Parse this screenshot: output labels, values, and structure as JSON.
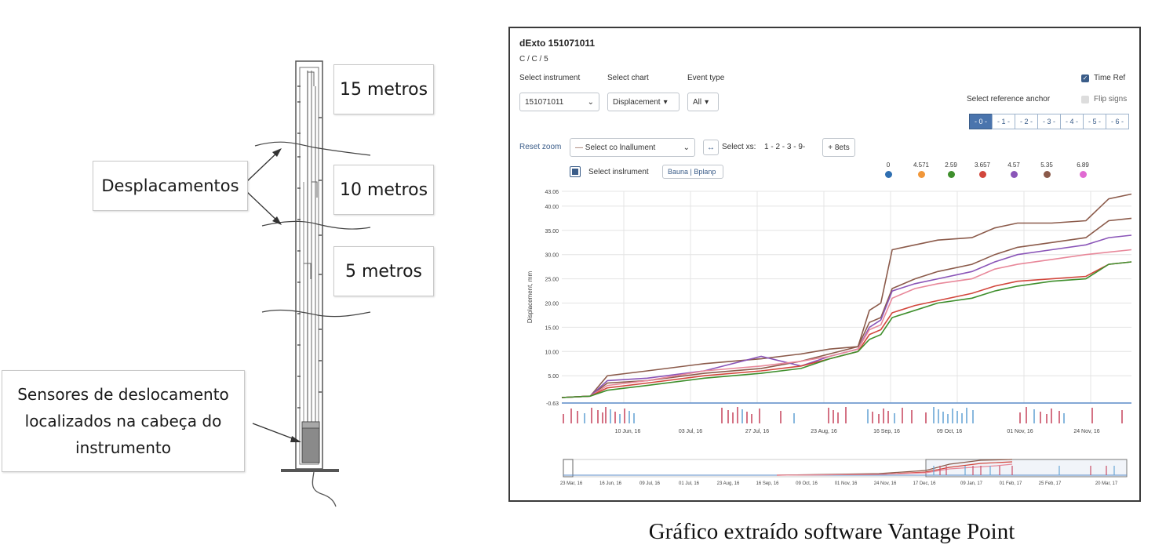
{
  "diagram": {
    "labels": {
      "m15": "15 metros",
      "m10": "10 metros",
      "m5": "5 metros",
      "displacements": "Desplacamentos",
      "sensors": "Sensores de deslocamento localizados na cabeça do instrumento"
    }
  },
  "app": {
    "title": "dExto 151071011",
    "subtitle": "C / C / 5",
    "select_instrument_label": "Select instrument",
    "instrument_value": "151071011",
    "select_chart_label": "Select chart",
    "chart_value": "Displacement",
    "event_type_label": "Event type",
    "event_value": "All",
    "time_ref_label": "Time Ref",
    "flip_signs_label": "Flip signs",
    "reference_anchor_label": "Select reference anchor",
    "anchor_buttons": [
      "- 0 -",
      "- 1 -",
      "- 2 -",
      "- 3 -",
      "- 4 -",
      "- 5 -",
      "- 6 -"
    ],
    "reset_zoom": "Reset zoom",
    "select_instrument_dropdown": "Select co lnallument",
    "select_xs_label": "Select xs:",
    "select_xs_values": "1 - 2 - 3 - 9-",
    "plus_button": "+ 8ets",
    "select_instrument_checkbox": "Select inslrument",
    "tag_button": "Bauna | Bplanp",
    "arrows_button": "↔"
  },
  "colors": {
    "brown": "#8b5a4a",
    "purple": "#8a55b8",
    "red": "#d2463c",
    "green": "#3f8f2d",
    "pink": "#e8889a",
    "orange": "#f1973a",
    "blue": "#2f6fb1",
    "magenta": "#e06ad2",
    "event_red": "#c94e66",
    "event_blue": "#6aa7d6"
  },
  "chart_data": {
    "type": "line",
    "ylabel": "Displacement, mm",
    "ylim": [
      -0.63,
      43.06
    ],
    "y_ticks": [
      "43.06",
      "40.00",
      "35.00",
      "30.00",
      "25.00",
      "20.00",
      "15.00",
      "10.00",
      "5.00",
      "-0.63"
    ],
    "x_ticks": [
      "10 Jun, 16",
      "03 Jul, 16",
      "27 Jul, 16",
      "23 Aug, 16",
      "16 Sep, 16",
      "09 Oct, 16",
      "01 Nov, 16",
      "24 Nov, 16"
    ],
    "navigator_ticks": [
      "23 Mar, 16",
      "16 Jun, 16",
      "09 Jul, 16",
      "01 Jul, 16",
      "23 Aug, 16",
      "16 Sep, 16",
      "09 Oct, 16",
      "01 Nov, 16",
      "24 Nov, 16",
      "17 Dec, 16",
      "09 Jan, 17",
      "01 Feb, 17",
      "25 Feb, 17",
      "20 Mar, 17"
    ],
    "legend": [
      {
        "name": "0",
        "color": "#2f6fb1"
      },
      {
        "name": "4.571",
        "color": "#f1973a"
      },
      {
        "name": "2.59",
        "color": "#3f8f2d"
      },
      {
        "name": "3.657",
        "color": "#d2463c"
      },
      {
        "name": "4.57",
        "color": "#8a55b8"
      },
      {
        "name": "5.35",
        "color": "#8b5a4a"
      },
      {
        "name": "6.89",
        "color": "#e06ad2"
      }
    ],
    "x": [
      0,
      5,
      8,
      15,
      25,
      35,
      42,
      47,
      52,
      54,
      56,
      58,
      62,
      66,
      72,
      76,
      80,
      86,
      92,
      96,
      100
    ],
    "series": [
      {
        "color": "#8b5a4a",
        "values": [
          0.5,
          0.8,
          5.0,
          6.0,
          7.5,
          8.5,
          9.5,
          10.5,
          11.0,
          18.5,
          20.0,
          31.0,
          32.0,
          33.0,
          33.5,
          35.5,
          36.5,
          36.5,
          37.0,
          41.5,
          42.5
        ]
      },
      {
        "color": "#8b5a4a",
        "values": [
          0.5,
          0.8,
          3.5,
          4.0,
          5.5,
          6.5,
          8.0,
          9.5,
          11.0,
          16.0,
          17.0,
          23.0,
          25.0,
          26.5,
          28.0,
          30.0,
          31.5,
          32.5,
          33.5,
          37.0,
          37.5
        ]
      },
      {
        "color": "#8a55b8",
        "values": [
          0.5,
          0.8,
          4.0,
          4.5,
          6.0,
          9.0,
          7.0,
          9.0,
          10.5,
          15.0,
          16.5,
          22.5,
          24.0,
          25.0,
          26.5,
          28.5,
          30.0,
          31.0,
          32.0,
          33.5,
          34.0
        ]
      },
      {
        "color": "#e8889a",
        "values": [
          0.5,
          0.8,
          3.0,
          4.0,
          6.0,
          7.0,
          8.0,
          9.0,
          10.5,
          14.5,
          15.5,
          21.0,
          23.0,
          24.0,
          25.0,
          27.0,
          28.0,
          29.0,
          30.0,
          30.5,
          31.0
        ]
      },
      {
        "color": "#d2463c",
        "values": [
          0.5,
          0.8,
          2.5,
          3.5,
          5.0,
          6.0,
          7.0,
          8.5,
          10.0,
          13.5,
          14.5,
          18.0,
          19.5,
          20.5,
          22.0,
          23.5,
          24.5,
          25.0,
          25.5,
          28.0,
          28.5
        ]
      },
      {
        "color": "#3f8f2d",
        "values": [
          0.5,
          0.8,
          2.0,
          3.0,
          4.5,
          5.5,
          6.5,
          8.5,
          10.0,
          12.5,
          13.5,
          17.0,
          18.5,
          20.0,
          21.0,
          22.5,
          23.5,
          24.5,
          25.0,
          28.0,
          28.5
        ]
      }
    ]
  },
  "caption": "Gráfico extraído software Vantage Point"
}
